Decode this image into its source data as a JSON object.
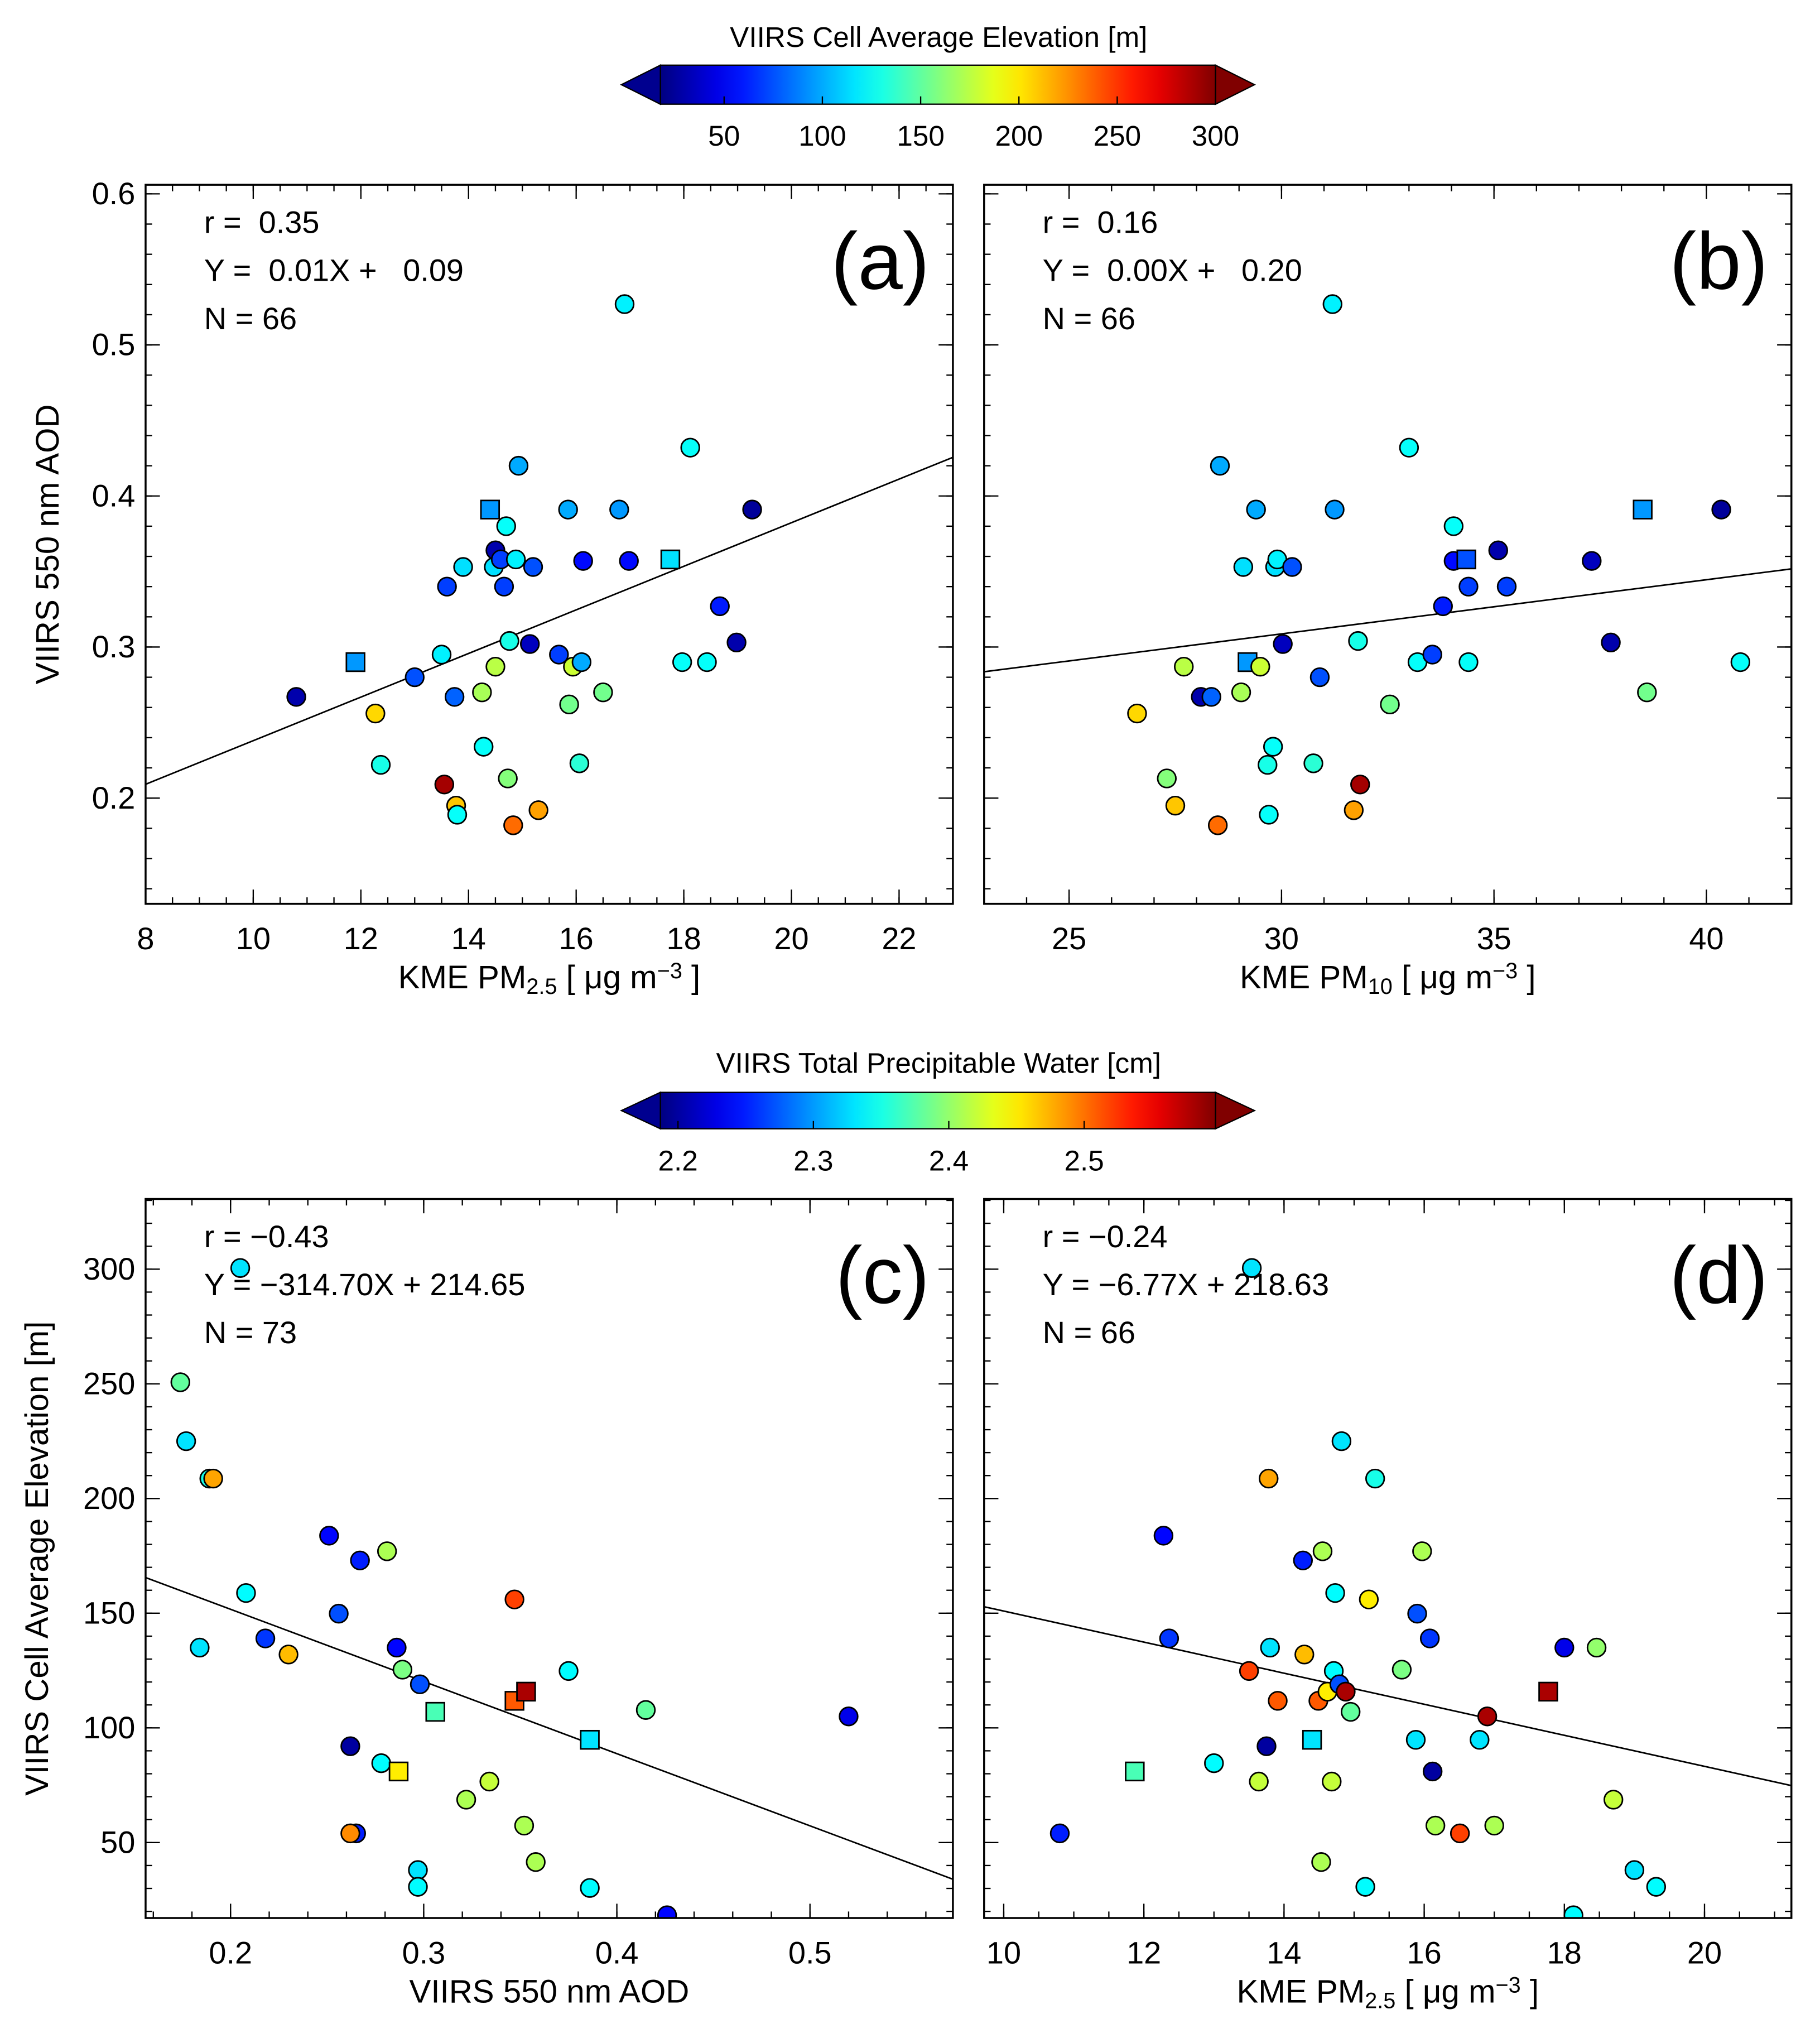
{
  "colorbars": [
    {
      "id": "elev",
      "title": "VIIRS Cell Average Elevation [m]",
      "range": [
        17.6,
        300
      ],
      "ticks": [
        50,
        100,
        150,
        200,
        250,
        300
      ],
      "tick_labels": [
        "50",
        "100",
        "150",
        "200",
        "250",
        "300"
      ]
    },
    {
      "id": "tpw",
      "title": "VIIRS Total Precipitable Water [cm]",
      "range": [
        2.187,
        2.597
      ],
      "ticks": [
        2.2,
        2.3,
        2.4,
        2.5
      ],
      "tick_labels": [
        "2.2",
        "2.3",
        "2.4",
        "2.5"
      ]
    }
  ],
  "colors": {
    "axis": "#000000",
    "under": "#00008f",
    "over": "#800000"
  },
  "chart_data": [
    {
      "id": "a",
      "type": "scatter",
      "letter": "(a)",
      "stats": [
        "r =  0.35",
        "Y =  0.01X +   0.09",
        "N = 66"
      ],
      "xlabel": {
        "prefix": "KME PM",
        "sub": "2.5",
        "mid": " [ μg m",
        "sup": "−3",
        "suffix": " ]"
      },
      "ylabel": "VIIRS 550 nm AOD",
      "xlim": [
        8,
        23
      ],
      "ylim": [
        0.13,
        0.606
      ],
      "xticks": [
        8,
        10,
        12,
        14,
        16,
        18,
        20,
        22
      ],
      "xtick_labels": [
        "8",
        "10",
        "12",
        "14",
        "16",
        "18",
        "20",
        "22"
      ],
      "xminor": 0.5,
      "yticks": [
        0.2,
        0.3,
        0.4,
        0.5,
        0.6
      ],
      "ytick_labels": [
        "0.2",
        "0.3",
        "0.4",
        "0.5",
        "0.6"
      ],
      "yminor": 0.02,
      "colorbar": "elev",
      "fit": {
        "slope": 0.01443,
        "intercept": 0.0937
      },
      "points": [
        [
          10.8,
          0.267,
          30,
          "o"
        ],
        [
          11.9,
          0.29,
          95,
          "s"
        ],
        [
          12.27,
          0.256,
          205,
          "o"
        ],
        [
          12.37,
          0.222,
          130,
          "o"
        ],
        [
          13.0,
          0.28,
          75,
          "o"
        ],
        [
          13.5,
          0.295,
          120,
          "o"
        ],
        [
          13.55,
          0.209,
          290,
          "o"
        ],
        [
          13.6,
          0.34,
          70,
          "o"
        ],
        [
          13.74,
          0.267,
          80,
          "o"
        ],
        [
          13.77,
          0.195,
          210,
          "o"
        ],
        [
          13.79,
          0.189,
          125,
          "o"
        ],
        [
          13.9,
          0.353,
          115,
          "o"
        ],
        [
          14.25,
          0.27,
          170,
          "o"
        ],
        [
          14.28,
          0.234,
          125,
          "o"
        ],
        [
          14.4,
          0.391,
          95,
          "s"
        ],
        [
          14.47,
          0.353,
          115,
          "o"
        ],
        [
          14.5,
          0.364,
          30,
          "o"
        ],
        [
          14.5,
          0.287,
          175,
          "o"
        ],
        [
          14.6,
          0.358,
          70,
          "o"
        ],
        [
          14.66,
          0.34,
          70,
          "o"
        ],
        [
          14.7,
          0.38,
          125,
          "o"
        ],
        [
          14.76,
          0.304,
          130,
          "o"
        ],
        [
          14.73,
          0.213,
          160,
          "o"
        ],
        [
          14.83,
          0.182,
          235,
          "o"
        ],
        [
          14.88,
          0.358,
          120,
          "o"
        ],
        [
          14.93,
          0.42,
          100,
          "o"
        ],
        [
          15.14,
          0.302,
          35,
          "o"
        ],
        [
          15.2,
          0.353,
          75,
          "o"
        ],
        [
          15.3,
          0.192,
          220,
          "o"
        ],
        [
          15.68,
          0.295,
          70,
          "o"
        ],
        [
          15.85,
          0.391,
          100,
          "o"
        ],
        [
          15.87,
          0.262,
          155,
          "o"
        ],
        [
          15.94,
          0.287,
          180,
          "o"
        ],
        [
          16.06,
          0.223,
          135,
          "o"
        ],
        [
          16.1,
          0.29,
          100,
          "o"
        ],
        [
          16.13,
          0.357,
          55,
          "o"
        ],
        [
          16.5,
          0.27,
          155,
          "o"
        ],
        [
          16.8,
          0.391,
          95,
          "o"
        ],
        [
          16.9,
          0.527,
          120,
          "o"
        ],
        [
          16.98,
          0.357,
          55,
          "o"
        ],
        [
          17.75,
          0.358,
          115,
          "s"
        ],
        [
          17.97,
          0.29,
          125,
          "o"
        ],
        [
          18.12,
          0.432,
          125,
          "o"
        ],
        [
          18.43,
          0.29,
          125,
          "o"
        ],
        [
          18.67,
          0.327,
          60,
          "o"
        ],
        [
          18.98,
          0.303,
          30,
          "o"
        ],
        [
          19.27,
          0.391,
          25,
          "o"
        ]
      ]
    },
    {
      "id": "b",
      "type": "scatter",
      "letter": "(b)",
      "stats": [
        "r =  0.16",
        "Y =  0.00X +   0.20",
        "N = 66"
      ],
      "xlabel": {
        "prefix": "KME PM",
        "sub": "10",
        "mid": " [ μg m",
        "sup": "−3",
        "suffix": " ]"
      },
      "ylabel": "",
      "xlim": [
        23,
        42
      ],
      "ylim": [
        0.13,
        0.606
      ],
      "xticks": [
        25,
        30,
        35,
        40
      ],
      "xtick_labels": [
        "25",
        "30",
        "35",
        "40"
      ],
      "xminor": 1,
      "yticks": [
        0.2,
        0.3,
        0.4,
        0.5,
        0.6
      ],
      "ytick_labels": [
        "",
        "",
        "",
        "",
        ""
      ],
      "yminor": 0.02,
      "colorbar": "elev",
      "fit": {
        "slope": 0.003584,
        "intercept": 0.2012
      },
      "points": [
        [
          26.6,
          0.256,
          205,
          "o"
        ],
        [
          27.3,
          0.213,
          160,
          "o"
        ],
        [
          27.5,
          0.195,
          210,
          "o"
        ],
        [
          27.7,
          0.287,
          175,
          "o"
        ],
        [
          28.1,
          0.267,
          30,
          "o"
        ],
        [
          28.35,
          0.267,
          80,
          "o"
        ],
        [
          28.5,
          0.182,
          235,
          "o"
        ],
        [
          28.55,
          0.42,
          100,
          "o"
        ],
        [
          29.05,
          0.27,
          170,
          "o"
        ],
        [
          29.1,
          0.353,
          115,
          "o"
        ],
        [
          29.2,
          0.29,
          95,
          "s"
        ],
        [
          29.4,
          0.391,
          100,
          "o"
        ],
        [
          29.5,
          0.287,
          180,
          "o"
        ],
        [
          29.67,
          0.222,
          130,
          "o"
        ],
        [
          29.7,
          0.189,
          125,
          "o"
        ],
        [
          29.8,
          0.234,
          125,
          "o"
        ],
        [
          29.85,
          0.353,
          115,
          "o"
        ],
        [
          29.9,
          0.358,
          120,
          "o"
        ],
        [
          30.03,
          0.302,
          35,
          "o"
        ],
        [
          30.25,
          0.353,
          75,
          "o"
        ],
        [
          30.75,
          0.223,
          135,
          "o"
        ],
        [
          30.9,
          0.28,
          75,
          "o"
        ],
        [
          31.2,
          0.527,
          120,
          "o"
        ],
        [
          31.25,
          0.391,
          95,
          "o"
        ],
        [
          31.7,
          0.192,
          220,
          "o"
        ],
        [
          31.8,
          0.304,
          130,
          "o"
        ],
        [
          31.85,
          0.209,
          290,
          "o"
        ],
        [
          32.55,
          0.262,
          155,
          "o"
        ],
        [
          33.0,
          0.432,
          125,
          "o"
        ],
        [
          33.2,
          0.29,
          125,
          "o"
        ],
        [
          33.55,
          0.295,
          70,
          "o"
        ],
        [
          33.8,
          0.327,
          60,
          "o"
        ],
        [
          34.05,
          0.38,
          125,
          "o"
        ],
        [
          34.05,
          0.357,
          55,
          "o"
        ],
        [
          34.35,
          0.358,
          75,
          "s"
        ],
        [
          34.4,
          0.34,
          70,
          "o"
        ],
        [
          34.4,
          0.29,
          125,
          "o"
        ],
        [
          35.1,
          0.364,
          30,
          "o"
        ],
        [
          35.3,
          0.34,
          70,
          "o"
        ],
        [
          37.3,
          0.357,
          35,
          "o"
        ],
        [
          37.75,
          0.303,
          30,
          "o"
        ],
        [
          38.5,
          0.391,
          95,
          "s"
        ],
        [
          38.6,
          0.27,
          155,
          "o"
        ],
        [
          40.35,
          0.391,
          25,
          "o"
        ],
        [
          40.8,
          0.29,
          125,
          "o"
        ]
      ]
    },
    {
      "id": "c",
      "type": "scatter",
      "letter": "(c)",
      "stats": [
        "r = −0.43",
        "Y = −314.70X + 214.65",
        "N = 73"
      ],
      "xlabel": {
        "prefix": "VIIRS 550 nm AOD",
        "sub": "",
        "mid": "",
        "sup": "",
        "suffix": ""
      },
      "ylabel": "VIIRS Cell Average Elevation [m]",
      "xlim": [
        0.156,
        0.574
      ],
      "ylim": [
        17.1,
        330.6
      ],
      "xticks": [
        0.2,
        0.3,
        0.4,
        0.5
      ],
      "xtick_labels": [
        "0.2",
        "0.3",
        "0.4",
        "0.5"
      ],
      "xminor": 0.02,
      "yticks": [
        50,
        100,
        150,
        200,
        250,
        300
      ],
      "ytick_labels": [
        "50",
        "100",
        "150",
        "200",
        "250",
        "300"
      ],
      "yminor": 10,
      "colorbar": "tpw",
      "fit": {
        "slope": -314.7,
        "intercept": 214.65
      },
      "points": [
        [
          0.174,
          250.7,
          2.38,
          "o"
        ],
        [
          0.177,
          225,
          2.33,
          "o"
        ],
        [
          0.189,
          208.7,
          2.35,
          "o"
        ],
        [
          0.191,
          208.7,
          2.48,
          "o"
        ],
        [
          0.205,
          300.5,
          2.33,
          "o"
        ],
        [
          0.208,
          158.8,
          2.34,
          "o"
        ],
        [
          0.184,
          135,
          2.33,
          "o"
        ],
        [
          0.218,
          139,
          2.26,
          "o"
        ],
        [
          0.23,
          132,
          2.47,
          "o"
        ],
        [
          0.251,
          183.8,
          2.24,
          "o"
        ],
        [
          0.256,
          149.8,
          2.27,
          "o"
        ],
        [
          0.262,
          92,
          2.2,
          "o"
        ],
        [
          0.265,
          54,
          2.25,
          "o"
        ],
        [
          0.262,
          54,
          2.49,
          "o"
        ],
        [
          0.267,
          173,
          2.25,
          "o"
        ],
        [
          0.278,
          84.6,
          2.34,
          "o"
        ],
        [
          0.281,
          177,
          2.41,
          "o"
        ],
        [
          0.286,
          135,
          2.24,
          "o"
        ],
        [
          0.287,
          81,
          2.45,
          "s"
        ],
        [
          0.289,
          125.4,
          2.39,
          "o"
        ],
        [
          0.297,
          38,
          2.33,
          "o"
        ],
        [
          0.297,
          30.7,
          2.34,
          "o"
        ],
        [
          0.298,
          119,
          2.27,
          "o"
        ],
        [
          0.306,
          107,
          2.37,
          "s"
        ],
        [
          0.322,
          68.7,
          2.41,
          "o"
        ],
        [
          0.334,
          76.6,
          2.42,
          "o"
        ],
        [
          0.347,
          156,
          2.52,
          "o"
        ],
        [
          0.347,
          111.8,
          2.51,
          "s"
        ],
        [
          0.352,
          57.4,
          2.41,
          "o"
        ],
        [
          0.353,
          115.8,
          2.58,
          "s"
        ],
        [
          0.358,
          41.5,
          2.41,
          "o"
        ],
        [
          0.375,
          124.8,
          2.34,
          "o"
        ],
        [
          0.386,
          94.8,
          2.33,
          "s"
        ],
        [
          0.386,
          30.2,
          2.34,
          "o"
        ],
        [
          0.415,
          107.8,
          2.38,
          "o"
        ],
        [
          0.426,
          18.3,
          2.24,
          "o"
        ],
        [
          0.52,
          105,
          2.23,
          "o"
        ]
      ]
    },
    {
      "id": "d",
      "type": "scatter",
      "letter": "(d)",
      "stats": [
        "r = −0.24",
        "Y = −6.77X + 218.63",
        "N = 66"
      ],
      "xlabel": {
        "prefix": "KME PM",
        "sub": "2.5",
        "mid": " [ μg m",
        "sup": "−3",
        "suffix": " ]"
      },
      "ylabel": "",
      "xlim": [
        9.72,
        21.24
      ],
      "ylim": [
        17.1,
        330.6
      ],
      "xticks": [
        10,
        12,
        14,
        16,
        18,
        20
      ],
      "xtick_labels": [
        "10",
        "12",
        "14",
        "16",
        "18",
        "20"
      ],
      "xminor": 0.5,
      "yticks": [
        50,
        100,
        150,
        200,
        250,
        300
      ],
      "ytick_labels": [
        "",
        "",
        "",
        "",
        "",
        ""
      ],
      "yminor": 10,
      "colorbar": "tpw",
      "fit": {
        "slope": -6.77,
        "intercept": 218.63
      },
      "points": [
        [
          10.8,
          54,
          2.25,
          "o"
        ],
        [
          12.28,
          183.8,
          2.24,
          "o"
        ],
        [
          12.36,
          139,
          2.26,
          "o"
        ],
        [
          11.87,
          81,
          2.37,
          "s"
        ],
        [
          13.0,
          84.6,
          2.34,
          "o"
        ],
        [
          13.5,
          124.8,
          2.52,
          "o"
        ],
        [
          13.64,
          76.6,
          2.42,
          "o"
        ],
        [
          13.75,
          92,
          2.2,
          "o"
        ],
        [
          13.78,
          208.7,
          2.48,
          "o"
        ],
        [
          13.8,
          135,
          2.33,
          "o"
        ],
        [
          13.91,
          111.8,
          2.51,
          "o"
        ],
        [
          14.27,
          173,
          2.25,
          "o"
        ],
        [
          14.29,
          132,
          2.47,
          "o"
        ],
        [
          14.4,
          94.8,
          2.33,
          "s"
        ],
        [
          14.49,
          111.8,
          2.51,
          "o"
        ],
        [
          14.55,
          177,
          2.41,
          "o"
        ],
        [
          14.53,
          41.5,
          2.41,
          "o"
        ],
        [
          14.62,
          115.8,
          2.45,
          "o"
        ],
        [
          14.68,
          76.6,
          2.42,
          "o"
        ],
        [
          14.71,
          124.8,
          2.34,
          "o"
        ],
        [
          14.73,
          158.8,
          2.34,
          "o"
        ],
        [
          14.79,
          119,
          2.27,
          "o"
        ],
        [
          14.82,
          225,
          2.33,
          "o"
        ],
        [
          14.88,
          115.8,
          2.58,
          "o"
        ],
        [
          14.95,
          107,
          2.38,
          "o"
        ],
        [
          15.16,
          30.7,
          2.34,
          "o"
        ],
        [
          15.21,
          156,
          2.45,
          "o"
        ],
        [
          15.3,
          208.7,
          2.35,
          "o"
        ],
        [
          15.68,
          125.4,
          2.39,
          "o"
        ],
        [
          15.88,
          94.8,
          2.33,
          "o"
        ],
        [
          15.9,
          149.8,
          2.27,
          "o"
        ],
        [
          15.97,
          177,
          2.41,
          "o"
        ],
        [
          16.08,
          139,
          2.26,
          "o"
        ],
        [
          16.12,
          81,
          2.2,
          "o"
        ],
        [
          16.16,
          57.4,
          2.41,
          "o"
        ],
        [
          16.51,
          54,
          2.52,
          "o"
        ],
        [
          16.79,
          94.8,
          2.33,
          "o"
        ],
        [
          16.9,
          105,
          2.58,
          "o"
        ],
        [
          17.0,
          57.4,
          2.41,
          "o"
        ],
        [
          17.77,
          115.8,
          2.58,
          "s"
        ],
        [
          18.0,
          135,
          2.23,
          "o"
        ],
        [
          18.13,
          18.3,
          2.34,
          "o"
        ],
        [
          18.46,
          135,
          2.4,
          "o"
        ],
        [
          18.7,
          68.7,
          2.42,
          "o"
        ],
        [
          19.0,
          38,
          2.33,
          "o"
        ],
        [
          19.31,
          30.7,
          2.34,
          "o"
        ],
        [
          13.54,
          300.5,
          2.33,
          "o"
        ]
      ]
    }
  ]
}
